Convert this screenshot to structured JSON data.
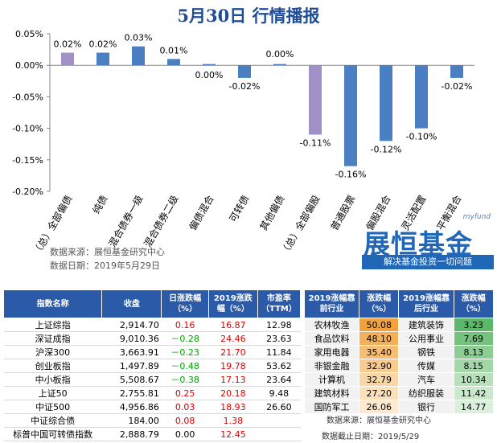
{
  "title": "5月30日  行情播报",
  "chart_data": {
    "type": "bar",
    "categories": [
      "（总）全部偏债",
      "纯债",
      "混合债券一级",
      "混合债券二级",
      "偏债混合",
      "可转债",
      "其他偏债",
      "（总）全部偏股",
      "普通股票",
      "偏股混合",
      "灵活配置",
      "平衡混合"
    ],
    "values": [
      0.02,
      0.02,
      0.03,
      0.01,
      0.0,
      -0.02,
      0.0,
      -0.11,
      -0.16,
      -0.12,
      -0.1,
      -0.02
    ],
    "value_labels": [
      "0.02%",
      "0.02%",
      "0.03%",
      "0.01%",
      "0.00%",
      "-0.02%",
      "0.00%",
      "-0.11%",
      "-0.16%",
      "-0.12%",
      "-0.10%",
      "-0.02%"
    ],
    "highlight_categories": [
      "（总）全部偏债",
      "（总）全部偏股"
    ],
    "colors": {
      "normal": "#4a7fc1",
      "highlight": "#a190c8"
    },
    "yticks": [
      0.05,
      0.0,
      -0.05,
      -0.1,
      -0.15,
      -0.2
    ],
    "ytick_labels": [
      "0.05%",
      "0.00%",
      "-0.05%",
      "-0.10%",
      "-0.15%",
      "-0.20%"
    ],
    "ylim": [
      -0.2,
      0.05
    ],
    "grid": false,
    "xlabel": "",
    "ylabel": ""
  },
  "notes": {
    "source": "数据来源：展恒基金研究中心",
    "date": "数据日期：2019年5月29日"
  },
  "logo": {
    "small": "myfund",
    "brand": "展恒基金",
    "slogan": "解决基金投资一切问题"
  },
  "left_table": {
    "headers": [
      "指数名称",
      "收盘",
      "日涨跌幅（%）",
      "2019涨跌幅（%）",
      "市盈率（TTM）"
    ],
    "rows": [
      {
        "name": "上证综指",
        "close": "2,914.70",
        "chg": "0.16",
        "ytd": "16.87",
        "pe": "12.98"
      },
      {
        "name": "深证成指",
        "close": "9,010.36",
        "chg": "－0.28",
        "ytd": "24.46",
        "pe": "23.63"
      },
      {
        "name": "沪深300",
        "close": "3,663.91",
        "chg": "－0.23",
        "ytd": "21.70",
        "pe": "11.84"
      },
      {
        "name": "创业板指",
        "close": "1,497.89",
        "chg": "－0.48",
        "ytd": "19.78",
        "pe": "53.62"
      },
      {
        "name": "中小板指",
        "close": "5,508.67",
        "chg": "－0.38",
        "ytd": "17.13",
        "pe": "23.64"
      },
      {
        "name": "上证50",
        "close": "2,755.81",
        "chg": "0.25",
        "ytd": "20.18",
        "pe": "9.48"
      },
      {
        "name": "中证500",
        "close": "4,956.86",
        "chg": "0.03",
        "ytd": "18.93",
        "pe": "26.60"
      },
      {
        "name": "中证综合债",
        "close": "184.00",
        "chg": "0.08",
        "ytd": "1.38",
        "pe": ""
      },
      {
        "name": "标普中国可转债指数",
        "close": "2,888.79",
        "chg": "0.00",
        "ytd": "12.45",
        "pe": ""
      }
    ]
  },
  "right_table": {
    "headers": [
      "2019涨幅靠前行业",
      "涨跌幅（%）",
      "2019涨幅靠后行业",
      "涨跌幅（%）"
    ],
    "rows": [
      {
        "top": "农林牧渔",
        "top_chg": "50.08",
        "bot": "建筑装饰",
        "bot_chg": "3.23"
      },
      {
        "top": "食品饮料",
        "top_chg": "48.10",
        "bot": "公用事业",
        "bot_chg": "7.69"
      },
      {
        "top": "家用电器",
        "top_chg": "35.40",
        "bot": "钢铁",
        "bot_chg": "8.13"
      },
      {
        "top": "非银金融",
        "top_chg": "32.90",
        "bot": "传媒",
        "bot_chg": "8.15"
      },
      {
        "top": "计算机",
        "top_chg": "32.79",
        "bot": "汽车",
        "bot_chg": "10.34"
      },
      {
        "top": "建筑材料",
        "top_chg": "27.20",
        "bot": "纺织服装",
        "bot_chg": "11.42"
      },
      {
        "top": "国防军工",
        "top_chg": "26.06",
        "bot": "银行",
        "bot_chg": "14.77"
      }
    ],
    "source": "数据来源：展恒基金研究中心",
    "date": "数据截止日期：2019/5/29"
  }
}
